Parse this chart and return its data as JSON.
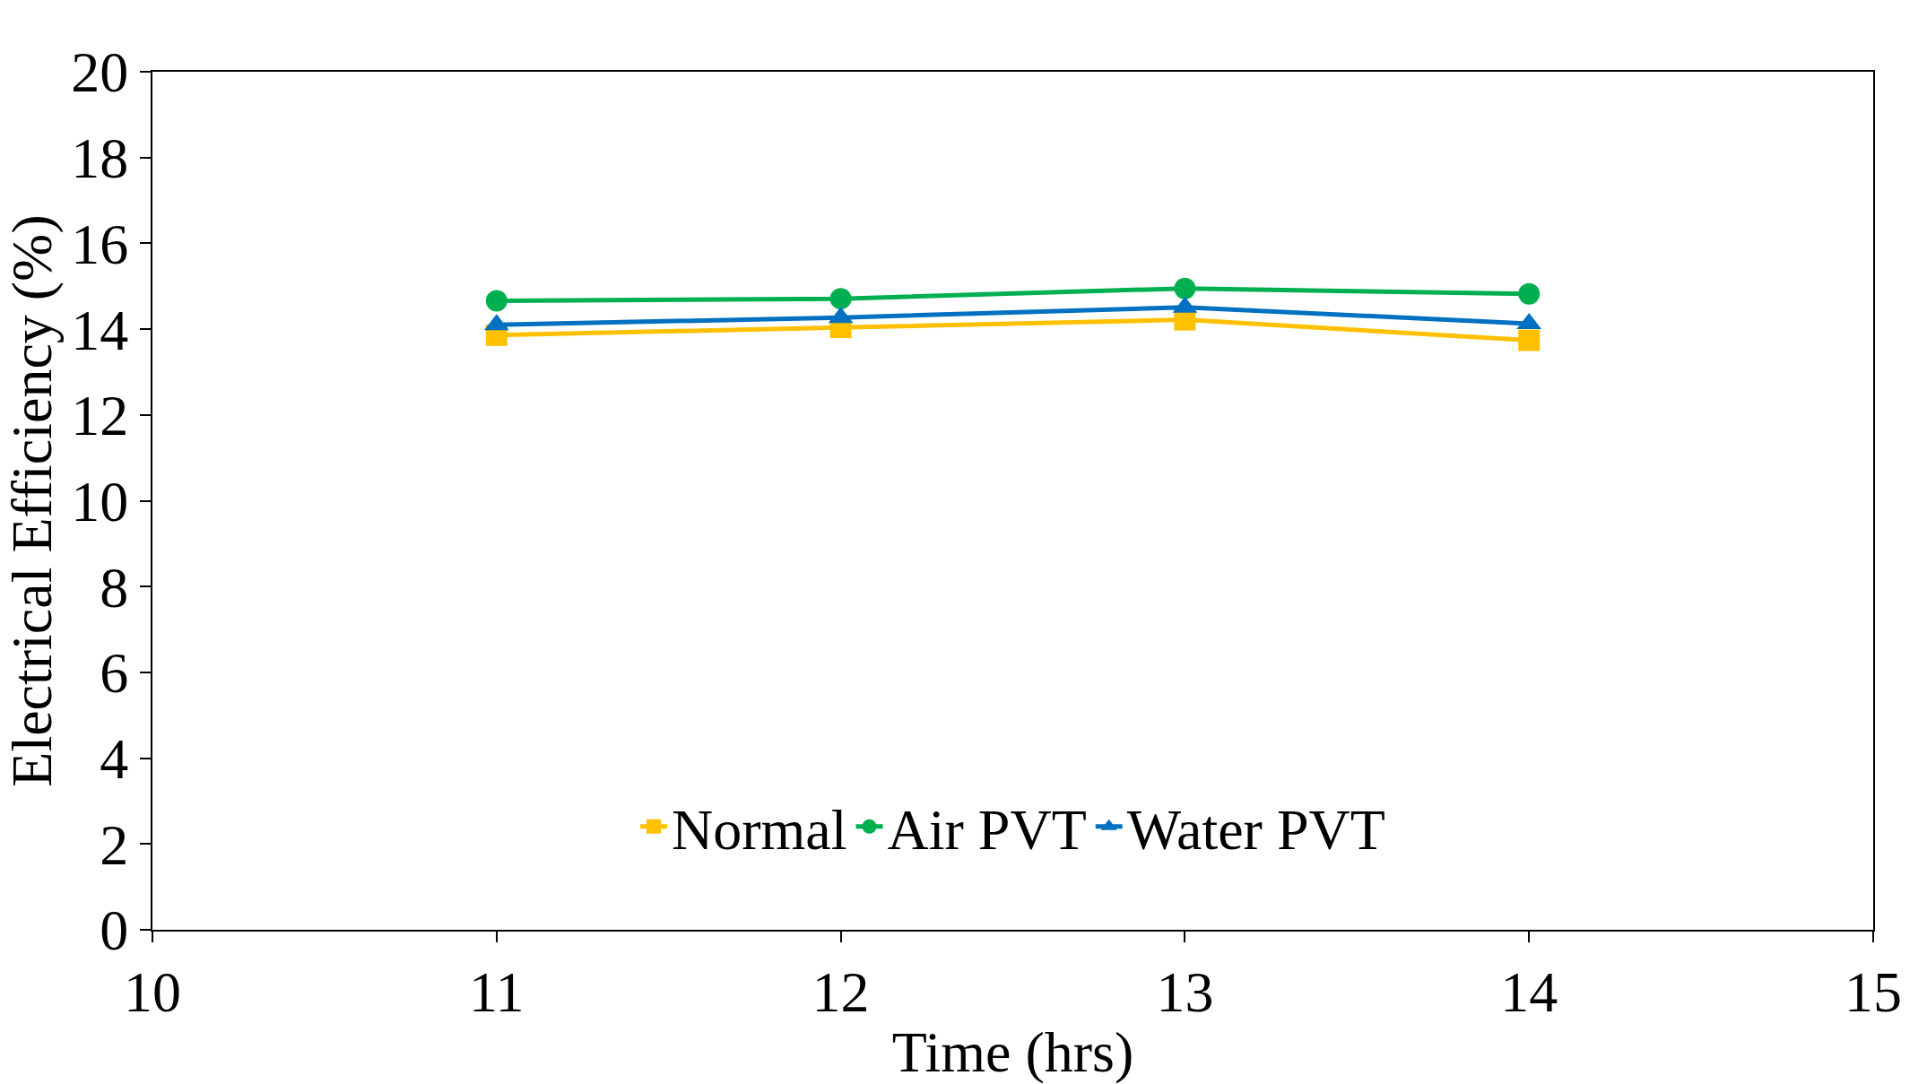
{
  "chart_data": {
    "type": "line",
    "xlabel": "Time (hrs)",
    "ylabel": "Electrical Efficiency (%)",
    "x": [
      11,
      12,
      13,
      14
    ],
    "series": [
      {
        "name": "Normal",
        "color": "#ffc000",
        "values": [
          13.86,
          14.04,
          14.22,
          13.74
        ],
        "marker": "square"
      },
      {
        "name": "Air PVT",
        "color": "#00b050",
        "values": [
          14.66,
          14.71,
          14.95,
          14.82
        ],
        "marker": "circle"
      },
      {
        "name": "Water PVT",
        "color": "#0070c0",
        "values": [
          14.1,
          14.27,
          14.51,
          14.13
        ],
        "marker": "triangle"
      }
    ],
    "xlim": [
      10,
      15
    ],
    "xticks": [
      10,
      11,
      12,
      13,
      14,
      15
    ],
    "ylim": [
      0,
      20
    ],
    "yticks": [
      0,
      2,
      4,
      6,
      8,
      10,
      12,
      14,
      16,
      18,
      20
    ],
    "legend": "bottom",
    "line_style": "solid"
  }
}
